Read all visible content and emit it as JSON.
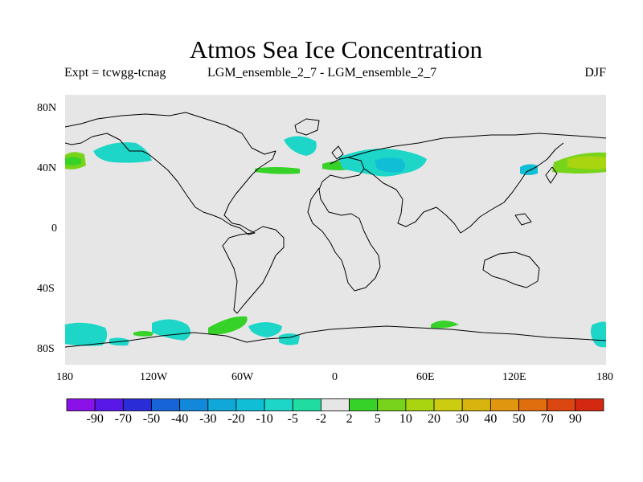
{
  "title": "Atmos Sea Ice Concentration",
  "experiment": "Expt = tcwgg-tcnag",
  "comparison": "LGM_ensemble_2_7 - LGM_ensemble_2_7",
  "season": "DJF",
  "map": {
    "projection": "cylindrical equidistant",
    "background_color": "#e6e6e6",
    "lat_ticks": [
      "80N",
      "40N",
      "0",
      "40S",
      "80S"
    ],
    "lon_ticks": [
      "180",
      "120W",
      "60W",
      "0",
      "60E",
      "120E",
      "180"
    ]
  },
  "colorbar": {
    "labels": [
      "-90",
      "-70",
      "-50",
      "-40",
      "-30",
      "-20",
      "-10",
      "-5",
      "-2",
      "2",
      "5",
      "10",
      "20",
      "30",
      "40",
      "50",
      "70",
      "90"
    ],
    "colors": [
      "#8a12e8",
      "#5a18e8",
      "#2a2cd8",
      "#1664d8",
      "#1188da",
      "#0fa8d8",
      "#10bfd6",
      "#1dd6c8",
      "#20dca0",
      "#e6e6e6",
      "#36d228",
      "#78d41a",
      "#a8d410",
      "#cccc10",
      "#d8b40e",
      "#e0960e",
      "#e06e0e",
      "#dc4610",
      "#d42810"
    ]
  }
}
